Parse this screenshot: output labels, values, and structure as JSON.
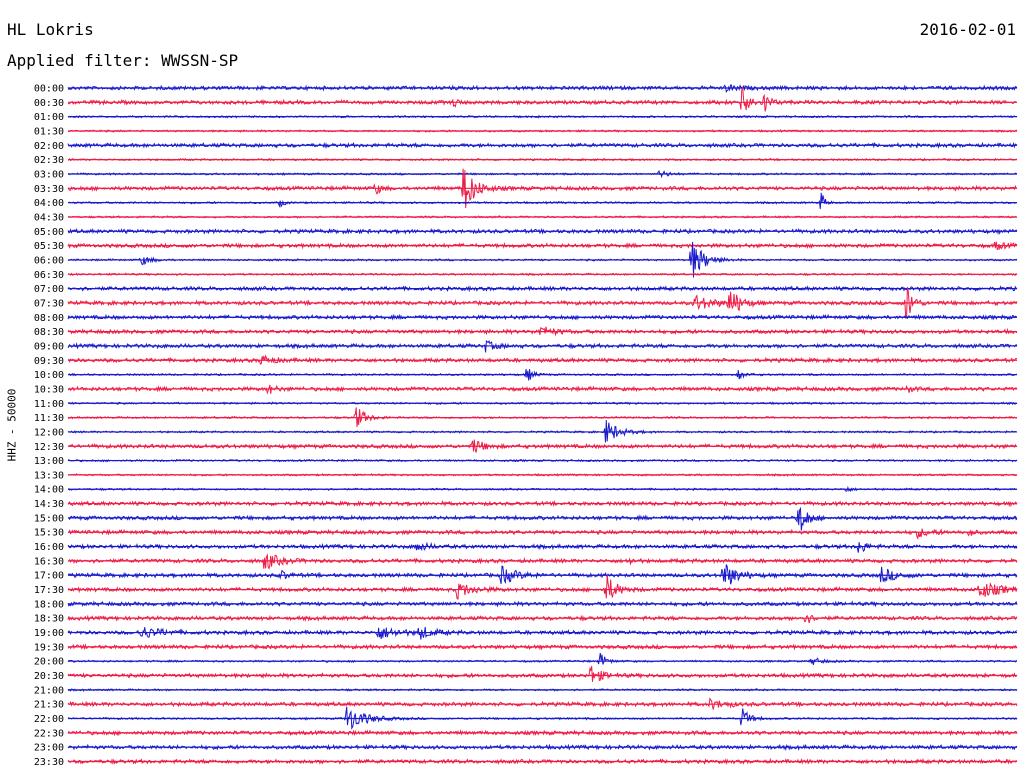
{
  "header": {
    "station": "HL Lokris",
    "date": "2016-02-01",
    "filter": "Applied filter: WWSSN-SP"
  },
  "axis": {
    "ylabel": "HHZ - 50000"
  },
  "colors": {
    "even_row": "#1a1acc",
    "odd_row": "#ee1c46",
    "text": "#000000",
    "background": "#ffffff"
  },
  "chart_data": {
    "type": "line",
    "description_free": true,
    "x_range_min": [
      0,
      30
    ],
    "row_labels": [
      "00:00",
      "00:30",
      "01:00",
      "01:30",
      "02:00",
      "02:30",
      "03:00",
      "03:30",
      "04:00",
      "04:30",
      "05:00",
      "05:30",
      "06:00",
      "06:30",
      "07:00",
      "07:30",
      "08:00",
      "08:30",
      "09:00",
      "09:30",
      "10:00",
      "10:30",
      "11:00",
      "11:30",
      "12:00",
      "12:30",
      "13:00",
      "13:30",
      "14:00",
      "14:30",
      "15:00",
      "15:30",
      "16:00",
      "16:30",
      "17:00",
      "17:30",
      "18:00",
      "18:30",
      "19:00",
      "19:30",
      "20:00",
      "20:30",
      "21:00",
      "21:30",
      "22:00",
      "22:30",
      "23:00",
      "23:30"
    ],
    "base_noise": [
      2,
      2,
      1,
      1,
      2,
      1,
      1,
      2,
      1,
      1,
      2,
      2,
      1,
      1,
      2,
      2,
      2,
      2,
      2,
      2,
      1,
      2,
      1,
      1,
      1,
      2,
      1,
      1,
      1,
      2,
      2,
      2,
      2,
      2,
      2,
      2,
      2,
      2,
      2,
      2,
      1,
      2,
      1,
      2,
      1,
      2,
      2,
      2
    ],
    "events": [
      {
        "row": 0,
        "minute": 20.8,
        "amp": 3,
        "dur": 0.9
      },
      {
        "row": 1,
        "minute": 12.2,
        "amp": 4,
        "dur": 0.4
      },
      {
        "row": 1,
        "minute": 21.3,
        "amp": 16,
        "dur": 0.6
      },
      {
        "row": 1,
        "minute": 22.0,
        "amp": 10,
        "dur": 0.5
      },
      {
        "row": 6,
        "minute": 18.7,
        "amp": 4,
        "dur": 0.7
      },
      {
        "row": 7,
        "minute": 9.7,
        "amp": 7,
        "dur": 0.4
      },
      {
        "row": 7,
        "minute": 12.5,
        "amp": 26,
        "dur": 0.9
      },
      {
        "row": 8,
        "minute": 6.7,
        "amp": 4,
        "dur": 0.4
      },
      {
        "row": 8,
        "minute": 23.8,
        "amp": 12,
        "dur": 0.3
      },
      {
        "row": 11,
        "minute": 29.3,
        "amp": 4,
        "dur": 0.8
      },
      {
        "row": 12,
        "minute": 2.3,
        "amp": 5,
        "dur": 0.8
      },
      {
        "row": 12,
        "minute": 19.7,
        "amp": 22,
        "dur": 1.0
      },
      {
        "row": 15,
        "minute": 19.8,
        "amp": 8,
        "dur": 1.4
      },
      {
        "row": 15,
        "minute": 20.9,
        "amp": 16,
        "dur": 0.8
      },
      {
        "row": 15,
        "minute": 26.5,
        "amp": 22,
        "dur": 0.5
      },
      {
        "row": 17,
        "minute": 14.9,
        "amp": 5,
        "dur": 1.2
      },
      {
        "row": 18,
        "minute": 13.2,
        "amp": 5,
        "dur": 0.8
      },
      {
        "row": 19,
        "minute": 6.1,
        "amp": 5,
        "dur": 1.0
      },
      {
        "row": 20,
        "minute": 14.5,
        "amp": 8,
        "dur": 0.5
      },
      {
        "row": 20,
        "minute": 21.2,
        "amp": 5,
        "dur": 0.5
      },
      {
        "row": 21,
        "minute": 6.3,
        "amp": 6,
        "dur": 0.5
      },
      {
        "row": 21,
        "minute": 26.5,
        "amp": 4,
        "dur": 0.4
      },
      {
        "row": 23,
        "minute": 9.1,
        "amp": 12,
        "dur": 0.8
      },
      {
        "row": 24,
        "minute": 17.0,
        "amp": 13,
        "dur": 1.0
      },
      {
        "row": 25,
        "minute": 12.8,
        "amp": 8,
        "dur": 0.8
      },
      {
        "row": 28,
        "minute": 24.6,
        "amp": 3,
        "dur": 0.4
      },
      {
        "row": 30,
        "minute": 23.1,
        "amp": 20,
        "dur": 0.6
      },
      {
        "row": 31,
        "minute": 26.8,
        "amp": 5,
        "dur": 1.0
      },
      {
        "row": 31,
        "minute": 28.5,
        "amp": 5,
        "dur": 0.3
      },
      {
        "row": 32,
        "minute": 11.0,
        "amp": 4,
        "dur": 1.0
      },
      {
        "row": 32,
        "minute": 25.0,
        "amp": 9,
        "dur": 0.5
      },
      {
        "row": 33,
        "minute": 6.2,
        "amp": 9,
        "dur": 1.2
      },
      {
        "row": 33,
        "minute": 17.7,
        "amp": 4,
        "dur": 0.4
      },
      {
        "row": 34,
        "minute": 6.7,
        "amp": 5,
        "dur": 0.6
      },
      {
        "row": 34,
        "minute": 13.7,
        "amp": 9,
        "dur": 1.2
      },
      {
        "row": 34,
        "minute": 20.7,
        "amp": 15,
        "dur": 1.0
      },
      {
        "row": 34,
        "minute": 25.7,
        "amp": 8,
        "dur": 1.1
      },
      {
        "row": 35,
        "minute": 12.3,
        "amp": 8,
        "dur": 1.2
      },
      {
        "row": 35,
        "minute": 17.0,
        "amp": 16,
        "dur": 0.8
      },
      {
        "row": 35,
        "minute": 28.8,
        "amp": 9,
        "dur": 1.6
      },
      {
        "row": 37,
        "minute": 23.3,
        "amp": 6,
        "dur": 0.5
      },
      {
        "row": 38,
        "minute": 2.3,
        "amp": 6,
        "dur": 1.5
      },
      {
        "row": 38,
        "minute": 9.8,
        "amp": 7,
        "dur": 1.4
      },
      {
        "row": 38,
        "minute": 11.1,
        "amp": 7,
        "dur": 1.0
      },
      {
        "row": 40,
        "minute": 16.8,
        "amp": 9,
        "dur": 0.5
      },
      {
        "row": 40,
        "minute": 23.5,
        "amp": 4,
        "dur": 0.8
      },
      {
        "row": 41,
        "minute": 16.5,
        "amp": 10,
        "dur": 0.9
      },
      {
        "row": 43,
        "minute": 20.3,
        "amp": 5,
        "dur": 1.2
      },
      {
        "row": 44,
        "minute": 8.8,
        "amp": 14,
        "dur": 1.5
      },
      {
        "row": 44,
        "minute": 21.3,
        "amp": 12,
        "dur": 0.6
      }
    ]
  }
}
